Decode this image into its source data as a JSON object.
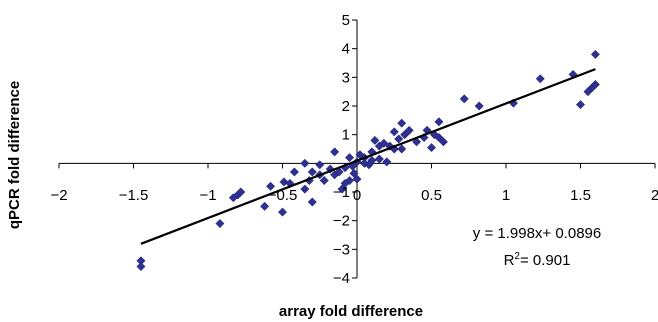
{
  "chart_data": {
    "type": "scatter",
    "xlabel": "array fold difference",
    "ylabel": "qPCR fold difference",
    "xlim": [
      -2,
      2
    ],
    "ylim": [
      -4,
      5
    ],
    "x_ticks": [
      -2,
      -1.5,
      -1,
      -0.5,
      0,
      0.5,
      1,
      1.5,
      2
    ],
    "x_tick_labels": [
      "−2",
      "−1.5",
      "−1",
      "−0.5",
      "0",
      "0.5",
      "1",
      "1.5",
      "2"
    ],
    "y_ticks": [
      -4,
      -3,
      -2,
      -1,
      0,
      1,
      2,
      3,
      4,
      5
    ],
    "y_tick_labels": [
      "−4",
      "−3",
      "−2",
      "−1",
      "0",
      "1",
      "2",
      "3",
      "4",
      "5"
    ],
    "grid": false,
    "marker_color": "#2e3192",
    "trendline": {
      "slope": 1.998,
      "intercept": 0.0896,
      "x_range": [
        -1.45,
        1.6
      ],
      "color": "#000000",
      "equation_label": "y = 1.998x+ 0.0896",
      "r2_label_prefix": "R",
      "r2_label_sup": "2",
      "r2_label_suffix": "= 0.901"
    },
    "points": [
      [
        -1.45,
        -3.4
      ],
      [
        -1.45,
        -3.6
      ],
      [
        -0.92,
        -2.1
      ],
      [
        -0.8,
        -1.1
      ],
      [
        -0.78,
        -1.0
      ],
      [
        -0.83,
        -1.2
      ],
      [
        -0.62,
        -1.5
      ],
      [
        -0.5,
        -1.7
      ],
      [
        -0.58,
        -0.8
      ],
      [
        -0.49,
        -0.65
      ],
      [
        -0.45,
        -0.7
      ],
      [
        -0.42,
        -0.3
      ],
      [
        -0.35,
        -0.9
      ],
      [
        -0.32,
        -0.6
      ],
      [
        -0.3,
        -0.3
      ],
      [
        -0.35,
        0.0
      ],
      [
        -0.3,
        -1.35
      ],
      [
        -0.25,
        -0.4
      ],
      [
        -0.25,
        -0.05
      ],
      [
        -0.22,
        -0.6
      ],
      [
        -0.18,
        -0.2
      ],
      [
        -0.15,
        -0.4
      ],
      [
        -0.15,
        0.4
      ],
      [
        -0.12,
        -0.3
      ],
      [
        -0.1,
        -0.9
      ],
      [
        -0.08,
        -0.7
      ],
      [
        -0.08,
        -0.15
      ],
      [
        -0.05,
        -0.6
      ],
      [
        -0.05,
        0.2
      ],
      [
        -0.03,
        -0.1
      ],
      [
        -0.02,
        -0.35
      ],
      [
        0.0,
        -0.55
      ],
      [
        0.0,
        0.05
      ],
      [
        0.02,
        0.3
      ],
      [
        0.05,
        0.0
      ],
      [
        0.05,
        0.2
      ],
      [
        0.08,
        -0.05
      ],
      [
        0.1,
        0.1
      ],
      [
        0.1,
        0.4
      ],
      [
        0.12,
        0.8
      ],
      [
        0.15,
        0.15
      ],
      [
        0.15,
        0.6
      ],
      [
        0.18,
        0.7
      ],
      [
        0.2,
        0.05
      ],
      [
        0.22,
        0.6
      ],
      [
        0.25,
        0.5
      ],
      [
        0.25,
        1.1
      ],
      [
        0.28,
        0.85
      ],
      [
        0.3,
        0.5
      ],
      [
        0.3,
        1.4
      ],
      [
        0.32,
        1.0
      ],
      [
        0.35,
        1.15
      ],
      [
        0.4,
        0.75
      ],
      [
        0.45,
        0.9
      ],
      [
        0.47,
        1.15
      ],
      [
        0.5,
        0.55
      ],
      [
        0.52,
        1.0
      ],
      [
        0.55,
        1.45
      ],
      [
        0.55,
        0.9
      ],
      [
        0.58,
        0.75
      ],
      [
        0.72,
        2.25
      ],
      [
        0.82,
        2.0
      ],
      [
        1.05,
        2.1
      ],
      [
        1.23,
        2.95
      ],
      [
        1.45,
        3.1
      ],
      [
        1.5,
        2.05
      ],
      [
        1.55,
        2.5
      ],
      [
        1.58,
        2.65
      ],
      [
        1.6,
        2.75
      ],
      [
        1.6,
        3.8
      ]
    ]
  }
}
